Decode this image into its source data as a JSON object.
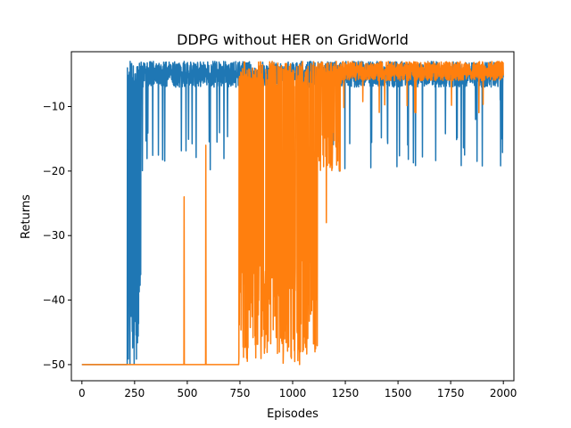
{
  "chart_data": {
    "type": "line",
    "title": "DDPG without HER on GridWorld",
    "xlabel": "Episodes",
    "ylabel": "Returns",
    "xlim": [
      -50,
      2050
    ],
    "ylim": [
      -52.5,
      -1.5
    ],
    "xticks": [
      0,
      250,
      500,
      750,
      1000,
      1250,
      1500,
      1750,
      2000
    ],
    "xtick_labels": [
      "0",
      "250",
      "500",
      "750",
      "1000",
      "1250",
      "1500",
      "1750",
      "2000"
    ],
    "yticks": [
      -50,
      -40,
      -30,
      -20,
      -10
    ],
    "ytick_labels": [
      "−50",
      "−40",
      "−30",
      "−20",
      "−10"
    ],
    "grid": false,
    "series": [
      {
        "color": "#1f77b4",
        "x_range": [
          0,
          2000
        ],
        "segments": [
          {
            "from": 0,
            "to": 214,
            "mode": "flat",
            "value": -50
          },
          {
            "from": 215,
            "to": 280,
            "mode": "band",
            "low": -50,
            "high": -3,
            "dip_prob": 0.45
          },
          {
            "from": 281,
            "to": 2000,
            "mode": "band",
            "low": -7,
            "high": -3,
            "dip_prob": 0.03,
            "dip_low": -20
          }
        ],
        "spikes": [
          {
            "x": 215,
            "y": -50
          },
          {
            "x": 216,
            "y": -4
          },
          {
            "x": 228,
            "y": -50
          },
          {
            "x": 229,
            "y": -3
          },
          {
            "x": 1222,
            "y": -20
          },
          {
            "x": 1868,
            "y": -12
          },
          {
            "x": 1985,
            "y": -9
          }
        ]
      },
      {
        "color": "#ff7f0e",
        "x_range": [
          0,
          2000
        ],
        "segments": [
          {
            "from": 0,
            "to": 744,
            "mode": "flat",
            "value": -50
          },
          {
            "from": 745,
            "to": 1120,
            "mode": "band",
            "low": -50,
            "high": -3,
            "dip_prob": 0.55
          },
          {
            "from": 1121,
            "to": 1230,
            "mode": "band",
            "low": -20,
            "high": -3,
            "dip_prob": 0.2
          },
          {
            "from": 1231,
            "to": 2000,
            "mode": "band",
            "low": -6,
            "high": -3,
            "dip_prob": 0.02,
            "dip_low": -11
          }
        ],
        "spikes": [
          {
            "x": 484,
            "y": -50
          },
          {
            "x": 485,
            "y": -24
          },
          {
            "x": 486,
            "y": -50
          },
          {
            "x": 587,
            "y": -50
          },
          {
            "x": 588,
            "y": -16
          },
          {
            "x": 589,
            "y": -50
          },
          {
            "x": 1160,
            "y": -28
          },
          {
            "x": 1195,
            "y": -14
          }
        ]
      }
    ]
  }
}
